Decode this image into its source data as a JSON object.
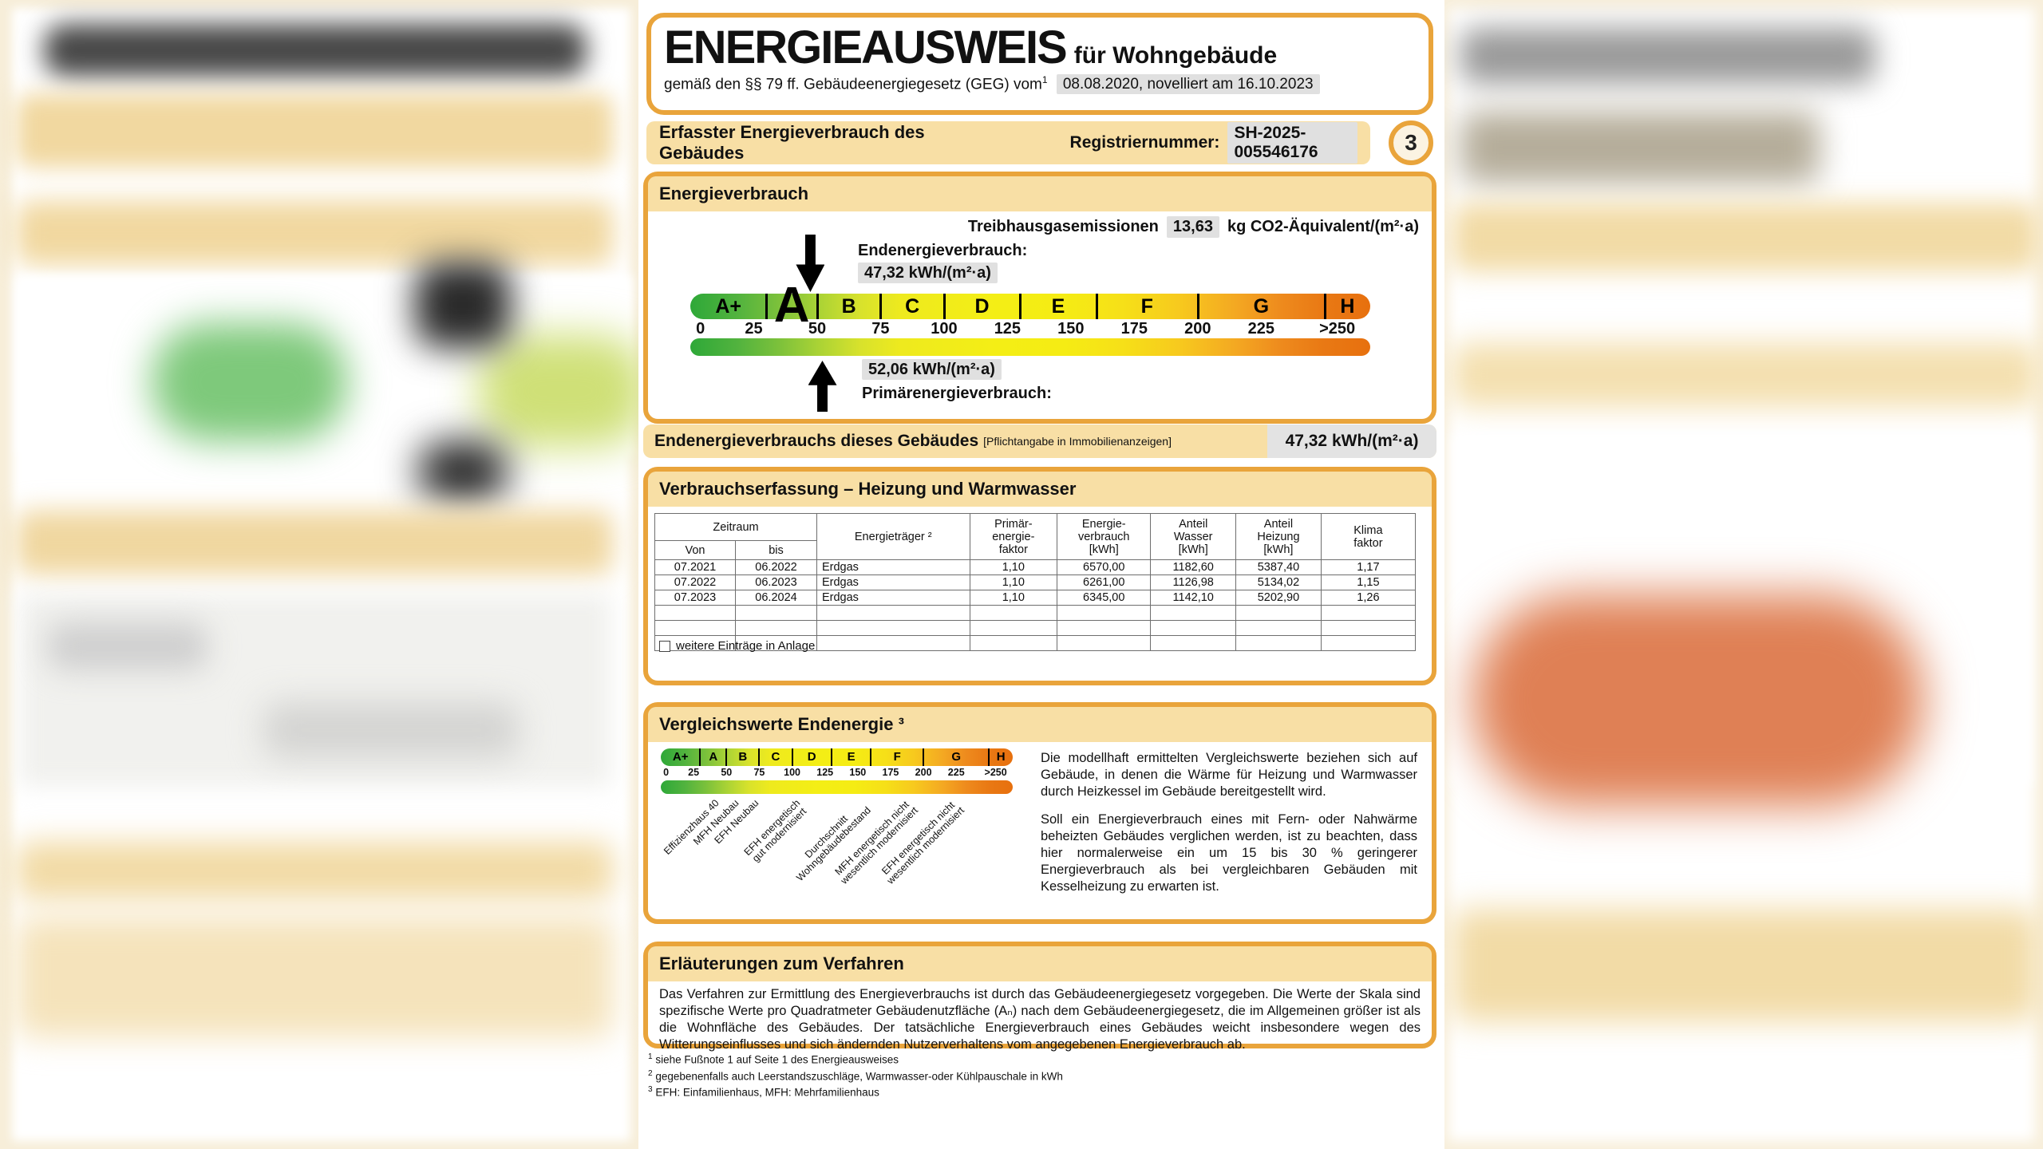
{
  "page": {
    "title": "ENERGIEAUSWEIS",
    "title_suffix": "für Wohngebäude",
    "subtitle_prefix": "gemäß den §§ 79 ff. Gebäudeenergiegesetz (GEG) vom",
    "subtitle_sup": "1",
    "subtitle_date": "08.08.2020, novelliert am 16.10.2023",
    "page_number": "3"
  },
  "header": {
    "left": "Erfasster Energieverbrauch des Gebäudes",
    "reg_label": "Registriernummer:",
    "reg_value": "SH-2025-005546176"
  },
  "energy_section": {
    "title": "Energieverbrauch",
    "ghg_label": "Treibhausgasemissionen",
    "ghg_value": "13,63",
    "ghg_unit": "kg CO2-Äquivalent/(m²·a)",
    "end_label": "Endenergieverbrauch:",
    "end_value": "47,32 kWh/(m²·a)",
    "primary_value": "52,06 kWh/(m²·a)",
    "primary_label": "Primärenergieverbrauch:"
  },
  "scale": {
    "letters": [
      "A+",
      "A",
      "B",
      "C",
      "D",
      "E",
      "F",
      "G",
      "H"
    ],
    "band_bounds": [
      0,
      30,
      50,
      75,
      100,
      130,
      160,
      200,
      250,
      268
    ],
    "ticks": [
      {
        "label": "0",
        "value": 4
      },
      {
        "label": "25",
        "value": 25
      },
      {
        "label": "50",
        "value": 50
      },
      {
        "label": "75",
        "value": 75
      },
      {
        "label": "100",
        "value": 100
      },
      {
        "label": "125",
        "value": 125
      },
      {
        "label": "150",
        "value": 150
      },
      {
        "label": "175",
        "value": 175
      },
      {
        "label": "200",
        "value": 200
      },
      {
        "label": "225",
        "value": 225
      },
      {
        "label": ">250",
        "value": 255
      }
    ],
    "max": 268,
    "current_letter": "A",
    "end_value_kwh": 47.32,
    "primary_value_kwh": 52.06
  },
  "mandatory_row": {
    "label": "Endenergieverbrauchs dieses Gebäudes",
    "note": "[Pflichtangabe in Immobilienanzeigen]",
    "value": "47,32 kWh/(m²·a)"
  },
  "consumption_table": {
    "title": "Verbrauchserfassung – Heizung und Warmwasser",
    "header": {
      "zeitraum": "Zeitraum",
      "von": "Von",
      "bis": "bis",
      "energietraeger": "Energieträger ²",
      "pef": "Primär-\nenergie-\nfaktor",
      "ev": "Energie-\nverbrauch\n[kWh]",
      "aw": "Anteil\nWasser\n[kWh]",
      "ah": "Anteil\nHeizung\n[kWh]",
      "kf": "Klima\nfaktor"
    },
    "rows": [
      [
        "07.2021",
        "06.2022",
        "Erdgas",
        "1,10",
        "6570,00",
        "1182,60",
        "5387,40",
        "1,17"
      ],
      [
        "07.2022",
        "06.2023",
        "Erdgas",
        "1,10",
        "6261,00",
        "1126,98",
        "5134,02",
        "1,15"
      ],
      [
        "07.2023",
        "06.2024",
        "Erdgas",
        "1,10",
        "6345,00",
        "1142,10",
        "5202,90",
        "1,26"
      ]
    ],
    "empty_rows": 3,
    "checkbox_label": "weitere Einträge in Anlage",
    "checkbox_checked": false
  },
  "comparison": {
    "title": "Vergleichswerte Endenergie ³",
    "labels": [
      {
        "text": "Effizienzhaus 40",
        "value": 38
      },
      {
        "text": "MFH Neubau",
        "value": 53
      },
      {
        "text": "EFH Neubau",
        "value": 68
      },
      {
        "text": "EFH energetisch\ngut modernisiert",
        "value": 100
      },
      {
        "text": "Durchschnitt\nWohngebäudebestand",
        "value": 148
      },
      {
        "text": "MFH energetisch nicht\nwesentlich modernisiert",
        "value": 184
      },
      {
        "text": "EFH energetisch nicht\nwesentlich modernisiert",
        "value": 219
      }
    ],
    "para1": "Die modellhaft ermittelten Vergleichswerte beziehen sich auf Gebäude, in denen die Wärme für Heizung und Warmwasser durch Heizkessel im Gebäude bereitgestellt wird.",
    "para2": "Soll ein Energieverbrauch eines mit Fern- oder Nahwärme beheizten Gebäudes verglichen werden, ist zu beachten, dass hier normalerweise ein um 15 bis 30 % geringerer Energieverbrauch als bei vergleichbaren Gebäuden mit Kesselheizung zu erwarten ist."
  },
  "explanation": {
    "title": "Erläuterungen zum Verfahren",
    "body": "Das Verfahren zur Ermittlung des Energieverbrauchs ist durch das Gebäudeenergiegesetz vorgegeben. Die Werte der Skala sind spezifische Werte pro Quadratmeter Gebäudenutzfläche (Aₙ) nach dem Gebäudeenergiegesetz, die im Allgemeinen größer ist als die Wohnfläche des Gebäudes. Der tatsächliche Energieverbrauch eines Gebäudes weicht insbesondere wegen des Witterungseinflusses und sich ändernden Nutzerverhaltens vom angegebenen Energieverbrauch ab."
  },
  "footnotes": [
    {
      "sup": "1",
      "text": "siehe Fußnote 1 auf Seite 1 des Energieausweises"
    },
    {
      "sup": "2",
      "text": "gegebenenfalls auch Leerstandszuschläge, Warmwasser-oder Kühlpauschale in kWh"
    },
    {
      "sup": "3",
      "text": "EFH: Einfamilienhaus, MFH: Mehrfamilienhaus"
    }
  ],
  "colors": {
    "accent_orange": "#e9a43b",
    "band_fill": "#f8dfa5",
    "highlight_gray": "#e0e0e0",
    "scale_green": "#2ea838",
    "scale_yellow": "#f4ee15",
    "scale_orange": "#e7700e"
  }
}
